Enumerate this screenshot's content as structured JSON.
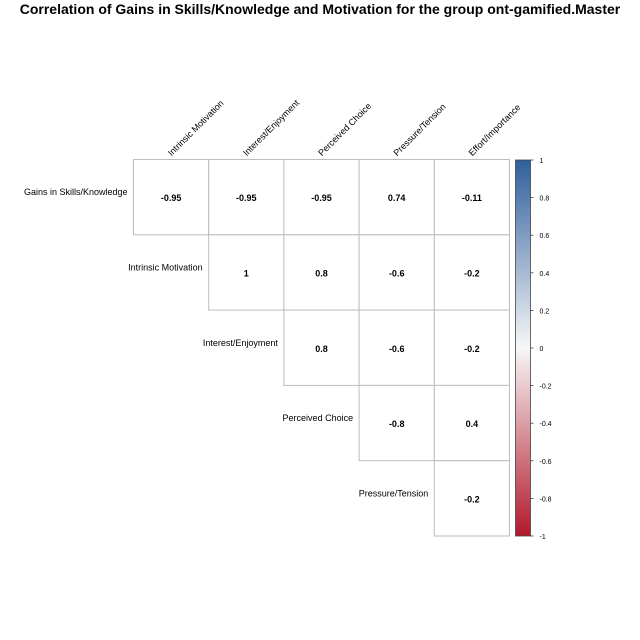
{
  "chart_data": {
    "type": "heatmap",
    "title": "Correlation of Gains in Skills/Knowledge and Motivation for the group ont-gamified.Master",
    "column_labels": [
      "Intrinsic Motivation",
      "Interest/Enjoyment",
      "Perceived Choice",
      "Pressure/Tension",
      "Effort/Importance"
    ],
    "row_labels": [
      "Gains in Skills/Knowledge",
      "Intrinsic Motivation",
      "Interest/Enjoyment",
      "Perceived Choice",
      "Pressure/Tension"
    ],
    "cells": [
      {
        "row": 0,
        "col": 0,
        "label": "-0.95"
      },
      {
        "row": 0,
        "col": 1,
        "label": "-0.95"
      },
      {
        "row": 0,
        "col": 2,
        "label": "-0.95"
      },
      {
        "row": 0,
        "col": 3,
        "label": "0.74"
      },
      {
        "row": 0,
        "col": 4,
        "label": "-0.11"
      },
      {
        "row": 1,
        "col": 1,
        "label": "1"
      },
      {
        "row": 1,
        "col": 2,
        "label": "0.8"
      },
      {
        "row": 1,
        "col": 3,
        "label": "-0.6"
      },
      {
        "row": 1,
        "col": 4,
        "label": "-0.2"
      },
      {
        "row": 2,
        "col": 2,
        "label": "0.8"
      },
      {
        "row": 2,
        "col": 3,
        "label": "-0.6"
      },
      {
        "row": 2,
        "col": 4,
        "label": "-0.2"
      },
      {
        "row": 3,
        "col": 3,
        "label": "-0.8"
      },
      {
        "row": 3,
        "col": 4,
        "label": "0.4"
      },
      {
        "row": 4,
        "col": 4,
        "label": "-0.2"
      }
    ],
    "colorbar": {
      "range": [
        -1,
        1
      ],
      "tick_labels": [
        "1",
        "0.8",
        "0.6",
        "0.4",
        "0.2",
        "0",
        "-0.2",
        "-0.4",
        "-0.6",
        "-0.8",
        "-1"
      ],
      "colors": [
        "#2f5f9c",
        "#f7f7f7",
        "#b2182b"
      ]
    },
    "cell_fill": "#ffffff",
    "grid_color": "#bdbdbd",
    "legend_position": "right"
  }
}
